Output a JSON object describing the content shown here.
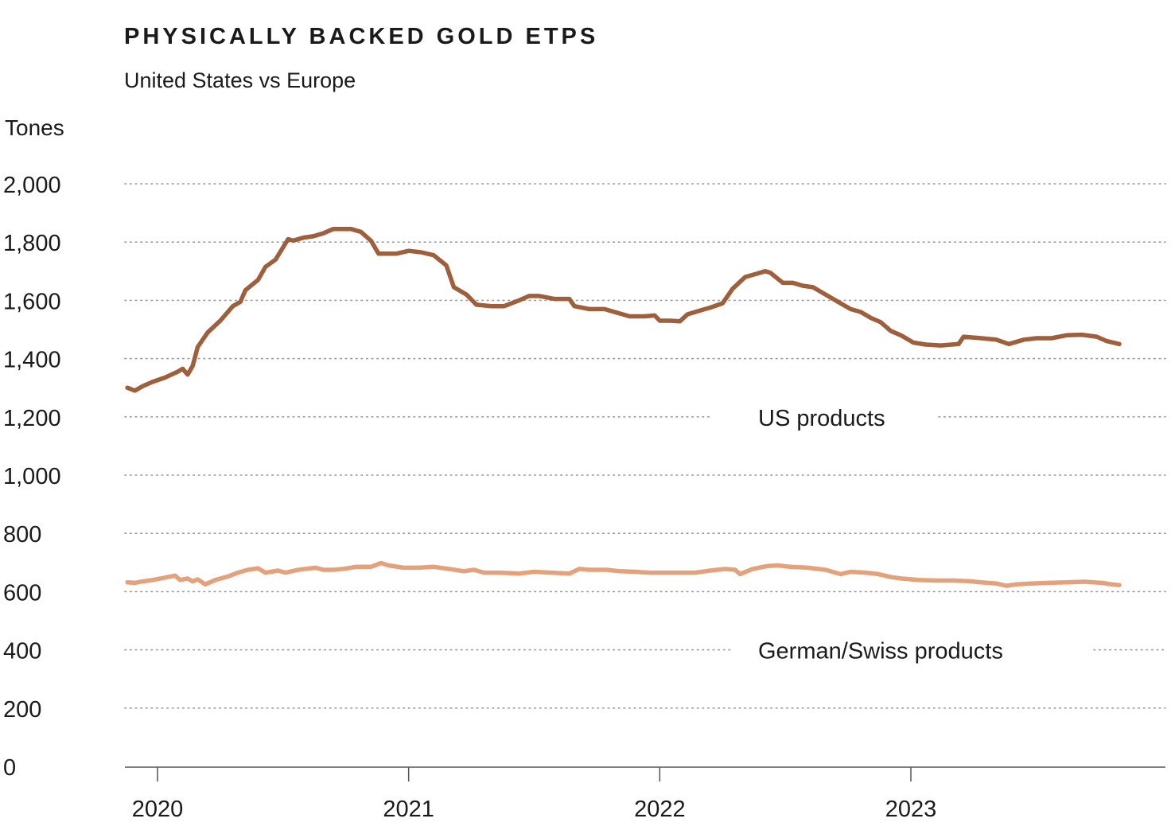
{
  "header": {
    "title": "PHYSICALLY BACKED GOLD ETPS",
    "subtitle": "United States vs Europe",
    "unit": "Tones"
  },
  "colors": {
    "us": "#9e5f3c",
    "europe": "#e3a27b",
    "grid": "#9a9a9a",
    "axis": "#555555"
  },
  "chart_data": {
    "type": "line",
    "title": "PHYSICALLY BACKED GOLD ETPS",
    "subtitle": "United States vs Europe",
    "ylabel": "Tones",
    "xlabel": "",
    "ylim": [
      0,
      2000
    ],
    "yticks": [
      "2,000",
      "1,800",
      "1,600",
      "1,400",
      "1,200",
      "1,000",
      "800",
      "600",
      "400",
      "200",
      "0"
    ],
    "ytick_values": [
      2000,
      1800,
      1600,
      1400,
      1200,
      1000,
      800,
      600,
      400,
      200,
      0
    ],
    "xlim": [
      2019.88,
      2024.0
    ],
    "xticks": [
      "2020",
      "2021",
      "2022",
      "2023"
    ],
    "xtick_values": [
      2020.0,
      2021.0,
      2022.0,
      2023.0
    ],
    "grid": "horizontal dotted",
    "legend": "inline labels",
    "series": [
      {
        "name": "US products",
        "color": "#9e5f3c",
        "points": [
          [
            2019.88,
            1300
          ],
          [
            2019.91,
            1290
          ],
          [
            2019.94,
            1305
          ],
          [
            2019.98,
            1320
          ],
          [
            2020.03,
            1335
          ],
          [
            2020.08,
            1355
          ],
          [
            2020.1,
            1365
          ],
          [
            2020.12,
            1345
          ],
          [
            2020.14,
            1375
          ],
          [
            2020.16,
            1440
          ],
          [
            2020.2,
            1490
          ],
          [
            2020.25,
            1530
          ],
          [
            2020.3,
            1580
          ],
          [
            2020.33,
            1595
          ],
          [
            2020.35,
            1635
          ],
          [
            2020.4,
            1670
          ],
          [
            2020.43,
            1715
          ],
          [
            2020.47,
            1740
          ],
          [
            2020.52,
            1810
          ],
          [
            2020.54,
            1805
          ],
          [
            2020.58,
            1815
          ],
          [
            2020.62,
            1820
          ],
          [
            2020.66,
            1830
          ],
          [
            2020.7,
            1845
          ],
          [
            2020.77,
            1845
          ],
          [
            2020.81,
            1835
          ],
          [
            2020.85,
            1805
          ],
          [
            2020.88,
            1760
          ],
          [
            2020.95,
            1760
          ],
          [
            2021.0,
            1770
          ],
          [
            2021.05,
            1765
          ],
          [
            2021.1,
            1755
          ],
          [
            2021.15,
            1720
          ],
          [
            2021.18,
            1645
          ],
          [
            2021.23,
            1620
          ],
          [
            2021.27,
            1585
          ],
          [
            2021.33,
            1580
          ],
          [
            2021.38,
            1580
          ],
          [
            2021.44,
            1600
          ],
          [
            2021.48,
            1615
          ],
          [
            2021.52,
            1615
          ],
          [
            2021.58,
            1605
          ],
          [
            2021.64,
            1605
          ],
          [
            2021.66,
            1580
          ],
          [
            2021.72,
            1570
          ],
          [
            2021.78,
            1570
          ],
          [
            2021.84,
            1555
          ],
          [
            2021.88,
            1545
          ],
          [
            2021.94,
            1545
          ],
          [
            2021.98,
            1548
          ],
          [
            2022.0,
            1530
          ],
          [
            2022.04,
            1530
          ],
          [
            2022.08,
            1528
          ],
          [
            2022.11,
            1552
          ],
          [
            2022.16,
            1565
          ],
          [
            2022.2,
            1575
          ],
          [
            2022.25,
            1590
          ],
          [
            2022.29,
            1640
          ],
          [
            2022.34,
            1680
          ],
          [
            2022.38,
            1690
          ],
          [
            2022.42,
            1700
          ],
          [
            2022.44,
            1695
          ],
          [
            2022.49,
            1660
          ],
          [
            2022.53,
            1660
          ],
          [
            2022.57,
            1650
          ],
          [
            2022.61,
            1645
          ],
          [
            2022.65,
            1625
          ],
          [
            2022.72,
            1590
          ],
          [
            2022.76,
            1570
          ],
          [
            2022.8,
            1560
          ],
          [
            2022.84,
            1540
          ],
          [
            2022.88,
            1525
          ],
          [
            2022.92,
            1495
          ],
          [
            2022.96,
            1480
          ],
          [
            2023.01,
            1455
          ],
          [
            2023.06,
            1448
          ],
          [
            2023.12,
            1445
          ],
          [
            2023.19,
            1450
          ],
          [
            2023.21,
            1475
          ],
          [
            2023.28,
            1470
          ],
          [
            2023.34,
            1465
          ],
          [
            2023.39,
            1450
          ],
          [
            2023.45,
            1465
          ],
          [
            2023.5,
            1470
          ],
          [
            2023.56,
            1470
          ],
          [
            2023.62,
            1480
          ],
          [
            2023.68,
            1482
          ],
          [
            2023.74,
            1475
          ],
          [
            2023.78,
            1460
          ],
          [
            2023.83,
            1450
          ]
        ]
      },
      {
        "name": "German/Swiss products",
        "color": "#e3a27b",
        "points": [
          [
            2019.88,
            632
          ],
          [
            2019.91,
            630
          ],
          [
            2019.94,
            635
          ],
          [
            2019.98,
            640
          ],
          [
            2020.03,
            648
          ],
          [
            2020.07,
            655
          ],
          [
            2020.09,
            640
          ],
          [
            2020.12,
            645
          ],
          [
            2020.14,
            635
          ],
          [
            2020.16,
            642
          ],
          [
            2020.19,
            625
          ],
          [
            2020.23,
            640
          ],
          [
            2020.28,
            652
          ],
          [
            2020.32,
            665
          ],
          [
            2020.36,
            675
          ],
          [
            2020.4,
            680
          ],
          [
            2020.43,
            665
          ],
          [
            2020.48,
            672
          ],
          [
            2020.51,
            665
          ],
          [
            2020.56,
            675
          ],
          [
            2020.63,
            682
          ],
          [
            2020.66,
            675
          ],
          [
            2020.7,
            675
          ],
          [
            2020.74,
            678
          ],
          [
            2020.79,
            685
          ],
          [
            2020.85,
            685
          ],
          [
            2020.89,
            698
          ],
          [
            2020.92,
            690
          ],
          [
            2020.98,
            682
          ],
          [
            2021.04,
            682
          ],
          [
            2021.1,
            685
          ],
          [
            2021.16,
            678
          ],
          [
            2021.22,
            670
          ],
          [
            2021.26,
            675
          ],
          [
            2021.3,
            665
          ],
          [
            2021.36,
            665
          ],
          [
            2021.44,
            662
          ],
          [
            2021.5,
            668
          ],
          [
            2021.57,
            665
          ],
          [
            2021.64,
            662
          ],
          [
            2021.68,
            678
          ],
          [
            2021.72,
            675
          ],
          [
            2021.79,
            675
          ],
          [
            2021.84,
            670
          ],
          [
            2021.9,
            668
          ],
          [
            2021.96,
            665
          ],
          [
            2022.02,
            665
          ],
          [
            2022.08,
            665
          ],
          [
            2022.14,
            665
          ],
          [
            2022.2,
            672
          ],
          [
            2022.26,
            678
          ],
          [
            2022.3,
            675
          ],
          [
            2022.32,
            660
          ],
          [
            2022.37,
            678
          ],
          [
            2022.43,
            688
          ],
          [
            2022.47,
            690
          ],
          [
            2022.52,
            685
          ],
          [
            2022.59,
            682
          ],
          [
            2022.66,
            675
          ],
          [
            2022.72,
            660
          ],
          [
            2022.76,
            668
          ],
          [
            2022.82,
            665
          ],
          [
            2022.87,
            660
          ],
          [
            2022.92,
            650
          ],
          [
            2022.96,
            645
          ],
          [
            2023.03,
            640
          ],
          [
            2023.1,
            638
          ],
          [
            2023.17,
            638
          ],
          [
            2023.23,
            636
          ],
          [
            2023.28,
            632
          ],
          [
            2023.34,
            628
          ],
          [
            2023.38,
            620
          ],
          [
            2023.42,
            625
          ],
          [
            2023.48,
            628
          ],
          [
            2023.55,
            630
          ],
          [
            2023.62,
            632
          ],
          [
            2023.69,
            634
          ],
          [
            2023.76,
            630
          ],
          [
            2023.8,
            625
          ],
          [
            2023.83,
            622
          ]
        ]
      }
    ]
  }
}
